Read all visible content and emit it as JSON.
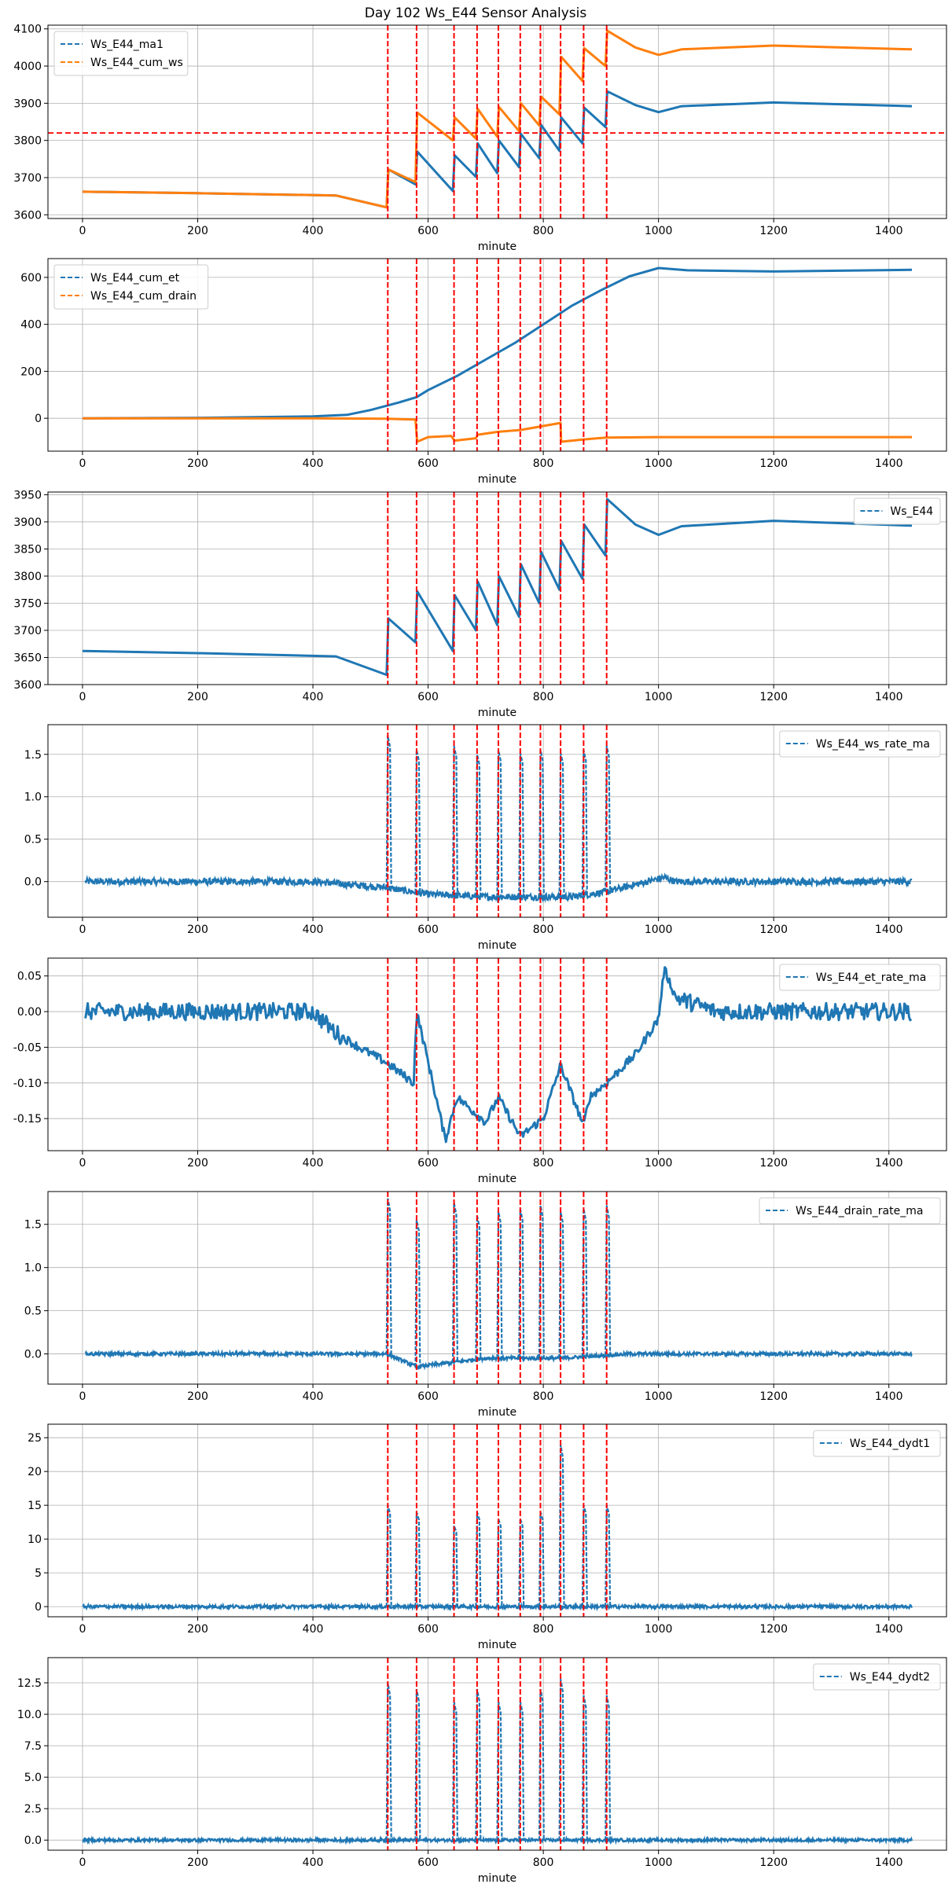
{
  "chart_data": {
    "title": "Day 102 Ws_E44 Sensor Analysis",
    "colors": {
      "blue": "#1f77b4",
      "orange": "#ff7f0e",
      "event": "#ff0000",
      "grid": "#b0b0b0"
    },
    "event_minutes": [
      530,
      580,
      645,
      685,
      722,
      760,
      795,
      830,
      870,
      910
    ],
    "xticks": [
      0,
      200,
      400,
      600,
      800,
      1000,
      1200,
      1400
    ],
    "xlim": [
      -60,
      1500
    ],
    "panels": [
      {
        "type": "line",
        "xlabel": "minute",
        "ylim": [
          3590,
          4110
        ],
        "yticks": [
          3600,
          3700,
          3800,
          3900,
          4000,
          4100
        ],
        "ytick_labels": [
          "3600",
          "3700",
          "3800",
          "3900",
          "4000",
          "4100"
        ],
        "legend_loc": "top-left",
        "hline": 3820,
        "series": [
          {
            "name": "Ws_E44_ma1",
            "color": "#1f77b4",
            "points": [
              [
                0,
                3662
              ],
              [
                200,
                3658
              ],
              [
                440,
                3652
              ],
              [
                528,
                3620
              ],
              [
                531,
                3722
              ],
              [
                578,
                3682
              ],
              [
                581,
                3770
              ],
              [
                643,
                3664
              ],
              [
                646,
                3760
              ],
              [
                683,
                3702
              ],
              [
                686,
                3792
              ],
              [
                720,
                3712
              ],
              [
                723,
                3800
              ],
              [
                758,
                3728
              ],
              [
                761,
                3818
              ],
              [
                793,
                3752
              ],
              [
                796,
                3842
              ],
              [
                828,
                3772
              ],
              [
                831,
                3862
              ],
              [
                868,
                3792
              ],
              [
                871,
                3888
              ],
              [
                908,
                3836
              ],
              [
                911,
                3932
              ],
              [
                960,
                3895
              ],
              [
                1000,
                3876
              ],
              [
                1040,
                3892
              ],
              [
                1200,
                3902
              ],
              [
                1440,
                3892
              ]
            ]
          },
          {
            "name": "Ws_E44_cum_ws",
            "color": "#ff7f0e",
            "points": [
              [
                0,
                3662
              ],
              [
                200,
                3658
              ],
              [
                440,
                3652
              ],
              [
                528,
                3620
              ],
              [
                531,
                3722
              ],
              [
                578,
                3688
              ],
              [
                581,
                3875
              ],
              [
                643,
                3800
              ],
              [
                646,
                3862
              ],
              [
                683,
                3805
              ],
              [
                686,
                3885
              ],
              [
                720,
                3810
              ],
              [
                723,
                3890
              ],
              [
                758,
                3825
              ],
              [
                761,
                3900
              ],
              [
                793,
                3840
              ],
              [
                796,
                3918
              ],
              [
                828,
                3870
              ],
              [
                831,
                4025
              ],
              [
                868,
                3960
              ],
              [
                871,
                4048
              ],
              [
                908,
                4000
              ],
              [
                911,
                4095
              ],
              [
                960,
                4050
              ],
              [
                1000,
                4030
              ],
              [
                1040,
                4045
              ],
              [
                1200,
                4055
              ],
              [
                1440,
                4045
              ]
            ]
          }
        ]
      },
      {
        "type": "line",
        "xlabel": "minute",
        "ylim": [
          -140,
          680
        ],
        "yticks": [
          0,
          200,
          400,
          600
        ],
        "ytick_labels": [
          "0",
          "200",
          "400",
          "600"
        ],
        "legend_loc": "top-left",
        "series": [
          {
            "name": "Ws_E44_cum_et",
            "color": "#1f77b4",
            "points": [
              [
                0,
                0
              ],
              [
                200,
                2
              ],
              [
                400,
                8
              ],
              [
                460,
                15
              ],
              [
                500,
                35
              ],
              [
                550,
                68
              ],
              [
                580,
                90
              ],
              [
                600,
                120
              ],
              [
                650,
                180
              ],
              [
                700,
                250
              ],
              [
                750,
                320
              ],
              [
                800,
                400
              ],
              [
                850,
                480
              ],
              [
                900,
                545
              ],
              [
                950,
                605
              ],
              [
                1000,
                640
              ],
              [
                1050,
                630
              ],
              [
                1200,
                625
              ],
              [
                1440,
                632
              ]
            ]
          },
          {
            "name": "Ws_E44_cum_drain",
            "color": "#ff7f0e",
            "points": [
              [
                0,
                0
              ],
              [
                200,
                0
              ],
              [
                400,
                0
              ],
              [
                528,
                -2
              ],
              [
                578,
                -5
              ],
              [
                581,
                -100
              ],
              [
                600,
                -80
              ],
              [
                640,
                -75
              ],
              [
                646,
                -95
              ],
              [
                683,
                -85
              ],
              [
                686,
                -70
              ],
              [
                720,
                -58
              ],
              [
                760,
                -50
              ],
              [
                830,
                -20
              ],
              [
                831,
                -100
              ],
              [
                870,
                -90
              ],
              [
                910,
                -82
              ],
              [
                1000,
                -80
              ],
              [
                1440,
                -80
              ]
            ]
          }
        ]
      },
      {
        "type": "line",
        "xlabel": "minute",
        "ylim": [
          3600,
          3955
        ],
        "yticks": [
          3600,
          3650,
          3700,
          3750,
          3800,
          3850,
          3900,
          3950
        ],
        "ytick_labels": [
          "3600",
          "3650",
          "3700",
          "3750",
          "3800",
          "3850",
          "3900",
          "3950"
        ],
        "legend_loc": "top-right",
        "series": [
          {
            "name": "Ws_E44",
            "color": "#1f77b4",
            "points": [
              [
                0,
                3662
              ],
              [
                200,
                3658
              ],
              [
                440,
                3652
              ],
              [
                528,
                3618
              ],
              [
                531,
                3722
              ],
              [
                578,
                3678
              ],
              [
                581,
                3772
              ],
              [
                643,
                3662
              ],
              [
                646,
                3765
              ],
              [
                683,
                3700
              ],
              [
                686,
                3790
              ],
              [
                720,
                3710
              ],
              [
                723,
                3800
              ],
              [
                758,
                3725
              ],
              [
                761,
                3822
              ],
              [
                793,
                3750
              ],
              [
                796,
                3845
              ],
              [
                828,
                3775
              ],
              [
                831,
                3865
              ],
              [
                868,
                3795
              ],
              [
                871,
                3895
              ],
              [
                908,
                3838
              ],
              [
                911,
                3942
              ],
              [
                960,
                3895
              ],
              [
                1000,
                3876
              ],
              [
                1040,
                3892
              ],
              [
                1200,
                3902
              ],
              [
                1440,
                3893
              ]
            ]
          }
        ]
      },
      {
        "type": "spikes",
        "xlabel": "minute",
        "ylim": [
          -0.42,
          1.85
        ],
        "yticks": [
          0.0,
          0.5,
          1.0,
          1.5
        ],
        "ytick_labels": [
          "0.0",
          "0.5",
          "1.0",
          "1.5"
        ],
        "legend_loc": "top-right",
        "baseline": [
          [
            5,
            0
          ],
          [
            400,
            0
          ],
          [
            525,
            -0.07
          ],
          [
            600,
            -0.15
          ],
          [
            700,
            -0.18
          ],
          [
            850,
            -0.18
          ],
          [
            910,
            -0.12
          ],
          [
            980,
            0
          ],
          [
            1010,
            0.05
          ],
          [
            1030,
            0
          ],
          [
            1440,
            0
          ]
        ],
        "noise": 0.04,
        "spike_heights": [
          1.72,
          1.55,
          1.6,
          1.5,
          1.55,
          1.52,
          1.55,
          1.52,
          1.55,
          1.6
        ],
        "series": [
          {
            "name": "Ws_E44_ws_rate_ma",
            "color": "#1f77b4"
          }
        ]
      },
      {
        "type": "line",
        "xlabel": "minute",
        "ylim": [
          -0.195,
          0.075
        ],
        "yticks": [
          -0.15,
          -0.1,
          -0.05,
          0.0,
          0.05
        ],
        "ytick_labels": [
          "-0.15",
          "-0.10",
          "-0.05",
          "0.00",
          "0.05"
        ],
        "legend_loc": "top-right",
        "noisy": true,
        "series": [
          {
            "name": "Ws_E44_et_rate_ma",
            "color": "#1f77b4",
            "points": [
              [
                5,
                0
              ],
              [
                100,
                0
              ],
              [
                140,
                0
              ],
              [
                400,
                0
              ],
              [
                440,
                -0.03
              ],
              [
                480,
                -0.05
              ],
              [
                525,
                -0.07
              ],
              [
                575,
                -0.1
              ],
              [
                580,
                0
              ],
              [
                600,
                -0.07
              ],
              [
                630,
                -0.18
              ],
              [
                650,
                -0.12
              ],
              [
                700,
                -0.155
              ],
              [
                722,
                -0.12
              ],
              [
                760,
                -0.175
              ],
              [
                800,
                -0.15
              ],
              [
                830,
                -0.075
              ],
              [
                870,
                -0.16
              ],
              [
                880,
                -0.12
              ],
              [
                910,
                -0.1
              ],
              [
                960,
                -0.06
              ],
              [
                1000,
                -0.01
              ],
              [
                1010,
                0.06
              ],
              [
                1030,
                0.02
              ],
              [
                1100,
                0
              ],
              [
                1420,
                0
              ],
              [
                1440,
                0
              ]
            ]
          }
        ]
      },
      {
        "type": "spikes",
        "xlabel": "minute",
        "ylim": [
          -0.35,
          1.88
        ],
        "yticks": [
          0.0,
          0.5,
          1.0,
          1.5
        ],
        "ytick_labels": [
          "0.0",
          "0.5",
          "1.0",
          "1.5"
        ],
        "legend_loc": "top-right",
        "baseline": [
          [
            5,
            0
          ],
          [
            528,
            0
          ],
          [
            580,
            -0.15
          ],
          [
            700,
            -0.05
          ],
          [
            830,
            -0.05
          ],
          [
            950,
            0
          ],
          [
            1440,
            0
          ]
        ],
        "noise": 0.02,
        "spike_heights": [
          1.8,
          1.55,
          1.75,
          1.6,
          1.65,
          1.68,
          1.72,
          1.65,
          1.68,
          1.72
        ],
        "series": [
          {
            "name": "Ws_E44_drain_rate_ma",
            "color": "#1f77b4"
          }
        ]
      },
      {
        "type": "spikes",
        "xlabel": "minute",
        "ylim": [
          -1.5,
          27
        ],
        "yticks": [
          0,
          5,
          10,
          15,
          20,
          25
        ],
        "ytick_labels": [
          "0",
          "5",
          "10",
          "15",
          "20",
          "25"
        ],
        "legend_loc": "top-right",
        "baseline": [
          [
            0,
            0
          ],
          [
            1440,
            0
          ]
        ],
        "noise": 0.25,
        "spike_heights": [
          15,
          14,
          12,
          14,
          13,
          13,
          14,
          24,
          15,
          15
        ],
        "series": [
          {
            "name": "Ws_E44_dydt1",
            "color": "#1f77b4"
          }
        ]
      },
      {
        "type": "spikes",
        "xlabel": "minute",
        "ylim": [
          -0.8,
          14.5
        ],
        "yticks": [
          0.0,
          2.5,
          5.0,
          7.5,
          10.0,
          12.5
        ],
        "ytick_labels": [
          "0.0",
          "2.5",
          "5.0",
          "7.5",
          "10.0",
          "12.5"
        ],
        "legend_loc": "top-right",
        "baseline": [
          [
            0,
            0
          ],
          [
            1440,
            0
          ]
        ],
        "noise": 0.12,
        "spike_heights": [
          12.5,
          12,
          11,
          12,
          11,
          11,
          12,
          12.8,
          11.5,
          11.5
        ],
        "series": [
          {
            "name": "Ws_E44_dydt2",
            "color": "#1f77b4"
          }
        ]
      }
    ]
  }
}
